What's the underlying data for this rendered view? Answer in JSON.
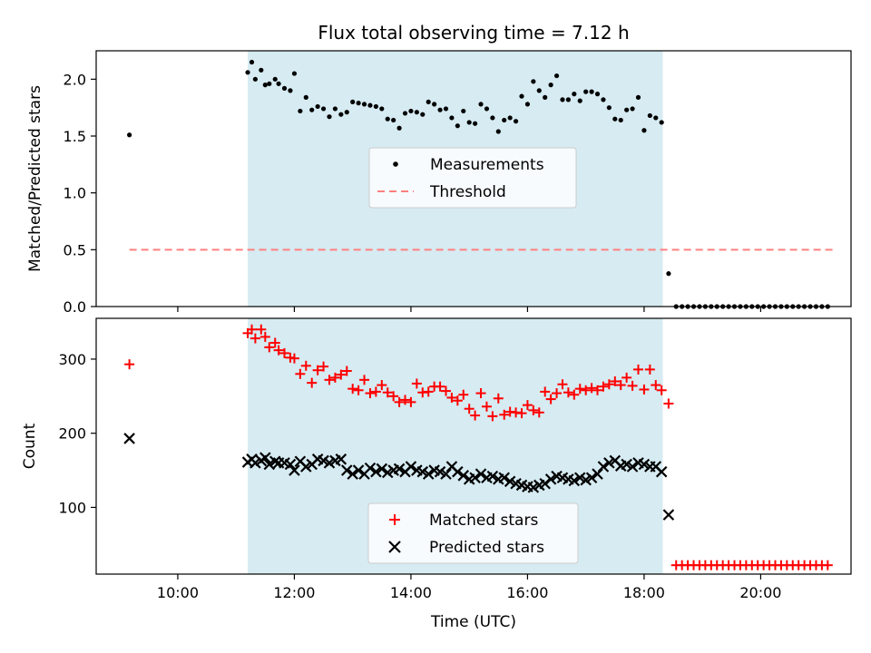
{
  "figure": {
    "title": "Flux total observing time = 7.12 h",
    "xlabel": "Time (UTC)",
    "x_ticks": [
      "10:00",
      "12:00",
      "14:00",
      "16:00",
      "18:00",
      "20:00"
    ],
    "x_tick_hours": [
      10,
      12,
      14,
      16,
      18,
      20
    ],
    "xlim_hours": [
      8.6,
      21.55
    ],
    "shaded_span_hours": [
      11.2,
      18.32
    ],
    "shade_color": "#add8e6"
  },
  "chart_data": [
    {
      "type": "scatter",
      "ylabel": "Matched/Predicted stars",
      "ylim": [
        0,
        2.25
      ],
      "y_ticks": [
        0.0,
        0.5,
        1.0,
        1.5,
        2.0
      ],
      "y_tick_labels": [
        "0.0",
        "0.5",
        "1.0",
        "1.5",
        "2.0"
      ],
      "legend_position": "center",
      "legend": {
        "measurements": "Measurements",
        "threshold": "Threshold"
      },
      "threshold": {
        "value": 0.5,
        "x_range_hours": [
          9.17,
          21.25
        ],
        "color": "#ff8080"
      },
      "series": [
        {
          "name": "Measurements",
          "color": "#000000",
          "x_hours": [
            9.17,
            11.2,
            11.27,
            11.33,
            11.43,
            11.5,
            11.57,
            11.67,
            11.73,
            11.83,
            11.93,
            12.0,
            12.1,
            12.2,
            12.3,
            12.4,
            12.5,
            12.6,
            12.7,
            12.8,
            12.9,
            13.0,
            13.1,
            13.2,
            13.3,
            13.4,
            13.5,
            13.6,
            13.7,
            13.8,
            13.9,
            14.0,
            14.1,
            14.2,
            14.3,
            14.4,
            14.5,
            14.6,
            14.7,
            14.8,
            14.9,
            15.0,
            15.1,
            15.2,
            15.3,
            15.4,
            15.5,
            15.6,
            15.7,
            15.8,
            15.9,
            16.0,
            16.1,
            16.2,
            16.3,
            16.4,
            16.5,
            16.6,
            16.7,
            16.8,
            16.9,
            17.0,
            17.1,
            17.2,
            17.3,
            17.4,
            17.5,
            17.6,
            17.7,
            17.8,
            17.9,
            18.0,
            18.1,
            18.2,
            18.3,
            18.42,
            18.55,
            18.65,
            18.75,
            18.85,
            18.95,
            19.05,
            19.15,
            19.25,
            19.35,
            19.45,
            19.55,
            19.65,
            19.75,
            19.85,
            19.95,
            20.05,
            20.15,
            20.25,
            20.35,
            20.45,
            20.55,
            20.65,
            20.75,
            20.85,
            20.95,
            21.05,
            21.15
          ],
          "values": [
            1.51,
            2.06,
            2.15,
            2.0,
            2.08,
            1.95,
            1.96,
            2.0,
            1.96,
            1.92,
            1.9,
            2.05,
            1.72,
            1.84,
            1.73,
            1.76,
            1.74,
            1.67,
            1.74,
            1.69,
            1.71,
            1.8,
            1.79,
            1.78,
            1.77,
            1.76,
            1.74,
            1.65,
            1.64,
            1.57,
            1.7,
            1.72,
            1.71,
            1.69,
            1.8,
            1.78,
            1.73,
            1.74,
            1.66,
            1.59,
            1.72,
            1.62,
            1.61,
            1.78,
            1.74,
            1.66,
            1.54,
            1.64,
            1.66,
            1.63,
            1.85,
            1.78,
            1.98,
            1.9,
            1.84,
            1.95,
            2.03,
            1.82,
            1.82,
            1.87,
            1.81,
            1.89,
            1.89,
            1.87,
            1.82,
            1.75,
            1.65,
            1.64,
            1.73,
            1.74,
            1.84,
            1.55,
            1.68,
            1.66,
            1.62,
            0.29,
            0.0,
            0.0,
            0.0,
            0.0,
            0.0,
            0.0,
            0.0,
            0.0,
            0.0,
            0.0,
            0.0,
            0.0,
            0.0,
            0.0,
            0.0,
            0.0,
            0.0,
            0.0,
            0.0,
            0.0,
            0.0,
            0.0,
            0.0,
            0.0,
            0.0,
            0.0,
            0.0
          ]
        }
      ]
    },
    {
      "type": "scatter",
      "ylabel": "Count",
      "ylim": [
        10,
        355
      ],
      "y_ticks": [
        100,
        200,
        300
      ],
      "y_tick_labels": [
        "100",
        "200",
        "300"
      ],
      "legend_position": "lower center",
      "series": [
        {
          "name": "Matched stars",
          "marker": "plus",
          "color": "#ff0000",
          "x_hours": [
            9.17,
            11.2,
            11.27,
            11.33,
            11.43,
            11.5,
            11.57,
            11.67,
            11.73,
            11.83,
            11.93,
            12.0,
            12.1,
            12.2,
            12.3,
            12.4,
            12.5,
            12.6,
            12.7,
            12.8,
            12.9,
            13.0,
            13.1,
            13.2,
            13.3,
            13.4,
            13.5,
            13.6,
            13.7,
            13.8,
            13.9,
            14.0,
            14.1,
            14.2,
            14.3,
            14.4,
            14.5,
            14.6,
            14.7,
            14.8,
            14.9,
            15.0,
            15.1,
            15.2,
            15.3,
            15.4,
            15.5,
            15.6,
            15.7,
            15.8,
            15.9,
            16.0,
            16.1,
            16.2,
            16.3,
            16.4,
            16.5,
            16.6,
            16.7,
            16.8,
            16.9,
            17.0,
            17.1,
            17.2,
            17.3,
            17.4,
            17.5,
            17.6,
            17.7,
            17.8,
            17.9,
            18.0,
            18.1,
            18.2,
            18.3,
            18.42,
            18.55,
            18.65,
            18.75,
            18.85,
            18.95,
            19.05,
            19.15,
            19.25,
            19.35,
            19.45,
            19.55,
            19.65,
            19.75,
            19.85,
            19.95,
            20.05,
            20.15,
            20.25,
            20.35,
            20.45,
            20.55,
            20.65,
            20.75,
            20.85,
            20.95,
            21.05,
            21.15
          ],
          "values": [
            293,
            335,
            340,
            328,
            340,
            330,
            316,
            322,
            312,
            308,
            302,
            301,
            280,
            291,
            268,
            285,
            290,
            272,
            275,
            279,
            284,
            260,
            258,
            272,
            254,
            256,
            265,
            255,
            250,
            242,
            245,
            242,
            267,
            255,
            256,
            263,
            263,
            257,
            248,
            244,
            252,
            233,
            224,
            254,
            236,
            223,
            247,
            225,
            229,
            228,
            227,
            238,
            231,
            228,
            256,
            246,
            254,
            266,
            255,
            252,
            260,
            258,
            261,
            258,
            263,
            266,
            270,
            265,
            275,
            264,
            286,
            259,
            286,
            265,
            258,
            240,
            22,
            22,
            22,
            22,
            22,
            22,
            22,
            22,
            22,
            22,
            22,
            22,
            22,
            22,
            22,
            22,
            22,
            22,
            22,
            22,
            22,
            22,
            22,
            22,
            22,
            22,
            22
          ]
        },
        {
          "name": "Predicted stars",
          "marker": "x",
          "color": "#000000",
          "x_hours": [
            9.17,
            11.2,
            11.27,
            11.33,
            11.43,
            11.5,
            11.57,
            11.67,
            11.73,
            11.83,
            11.93,
            12.0,
            12.1,
            12.2,
            12.3,
            12.4,
            12.5,
            12.6,
            12.7,
            12.8,
            12.9,
            13.0,
            13.1,
            13.2,
            13.3,
            13.4,
            13.5,
            13.6,
            13.7,
            13.8,
            13.9,
            14.0,
            14.1,
            14.2,
            14.3,
            14.4,
            14.5,
            14.6,
            14.7,
            14.8,
            14.9,
            15.0,
            15.1,
            15.2,
            15.3,
            15.4,
            15.5,
            15.6,
            15.7,
            15.8,
            15.9,
            16.0,
            16.1,
            16.2,
            16.3,
            16.4,
            16.5,
            16.6,
            16.7,
            16.8,
            16.9,
            17.0,
            17.1,
            17.2,
            17.3,
            17.4,
            17.5,
            17.6,
            17.7,
            17.8,
            17.9,
            18.0,
            18.1,
            18.2,
            18.3,
            18.42
          ],
          "values": [
            193,
            161,
            165,
            160,
            163,
            167,
            158,
            162,
            160,
            160,
            158,
            150,
            162,
            155,
            158,
            165,
            163,
            160,
            163,
            165,
            150,
            145,
            150,
            145,
            153,
            148,
            152,
            147,
            150,
            152,
            148,
            155,
            150,
            148,
            145,
            150,
            148,
            145,
            155,
            148,
            143,
            138,
            140,
            145,
            140,
            142,
            138,
            140,
            135,
            132,
            130,
            128,
            127,
            130,
            132,
            138,
            142,
            140,
            138,
            136,
            140,
            137,
            140,
            145,
            155,
            160,
            163,
            156,
            158,
            155,
            160,
            158,
            155,
            155,
            148,
            90
          ]
        }
      ]
    }
  ]
}
